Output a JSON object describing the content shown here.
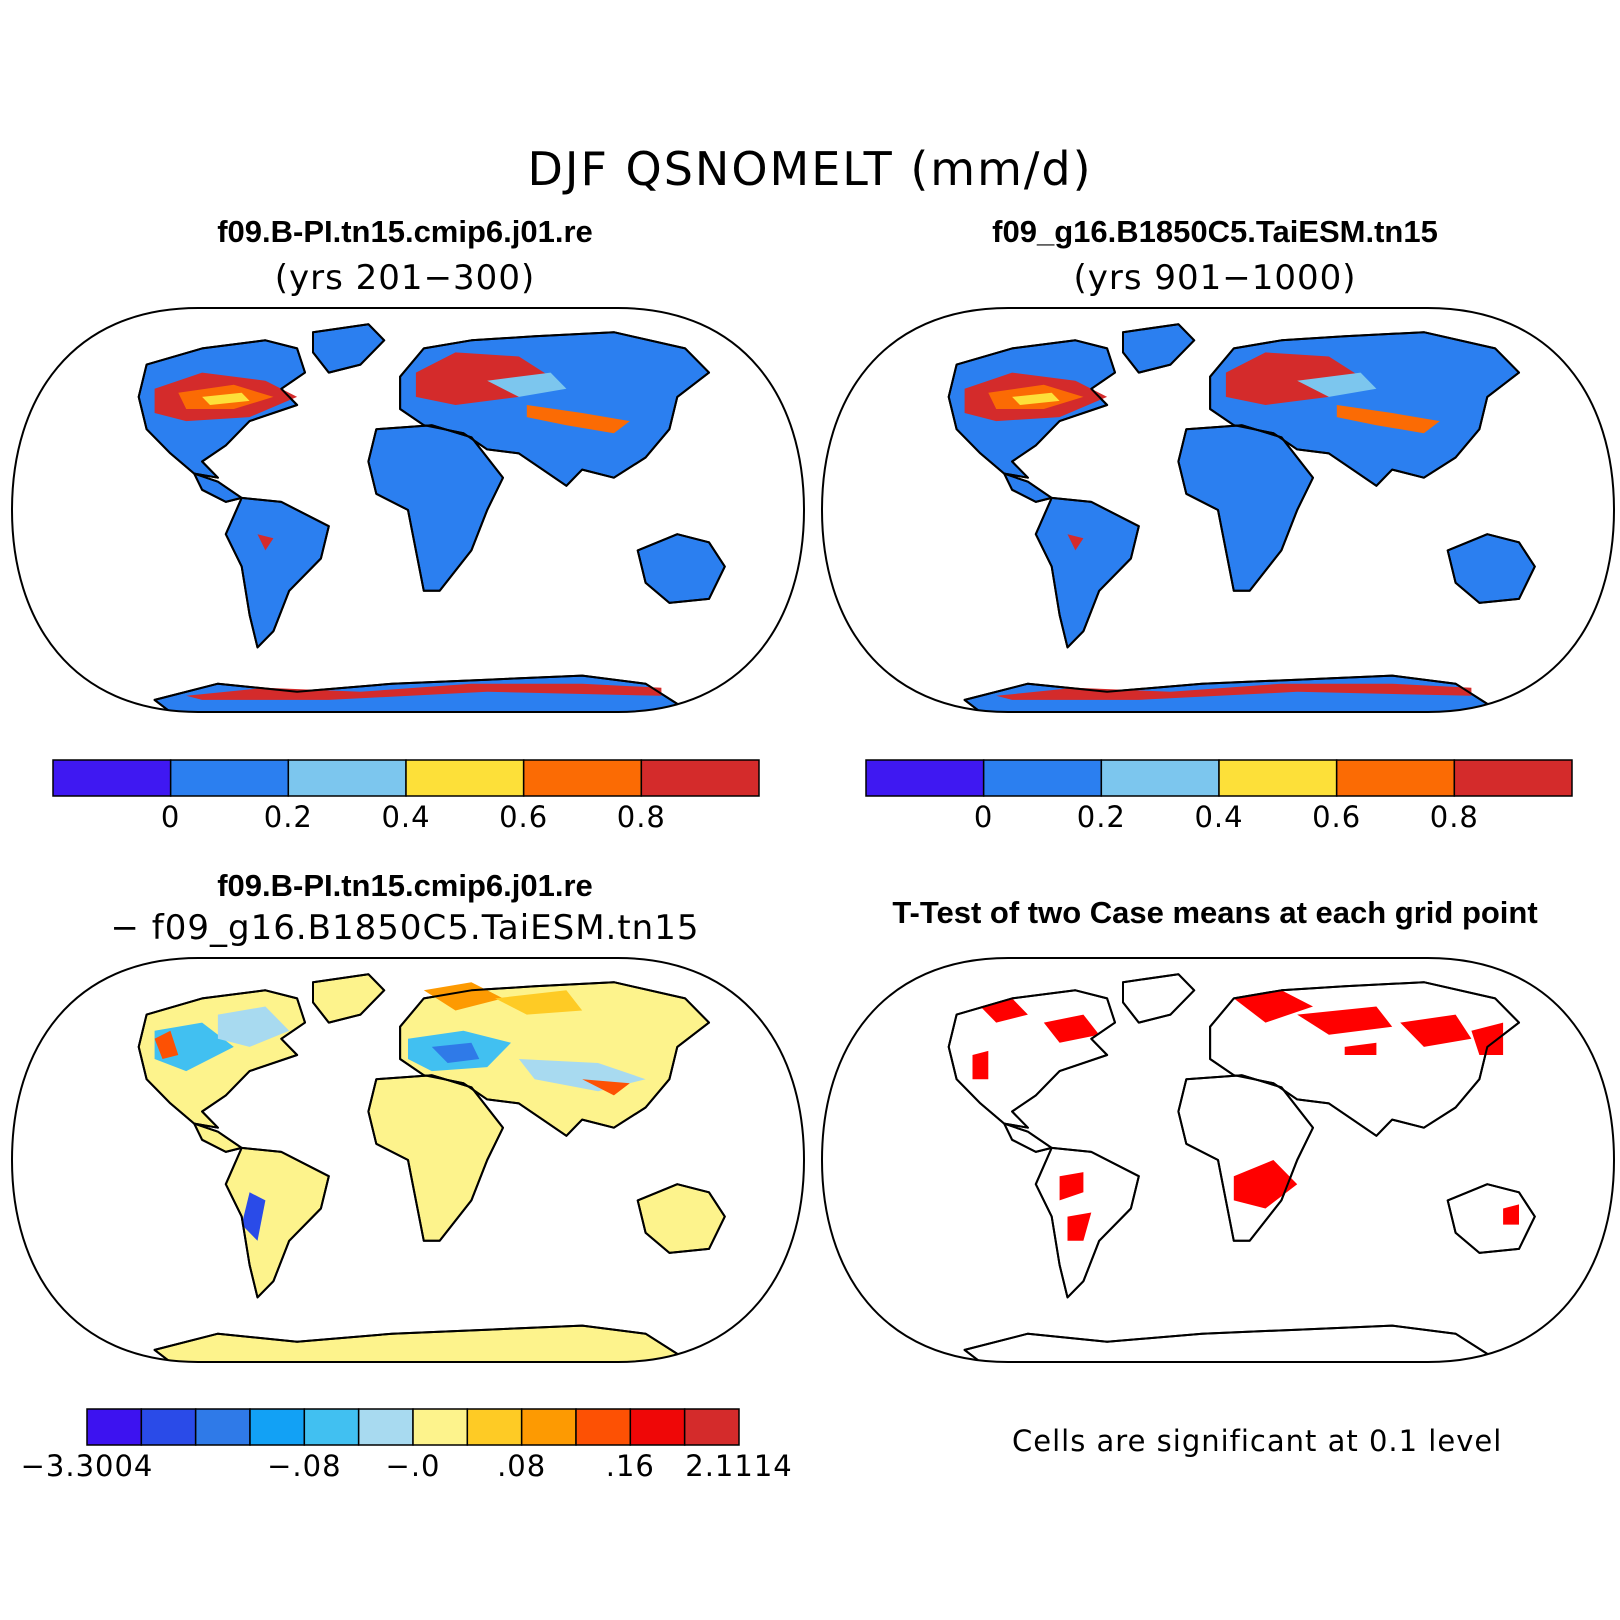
{
  "figure": {
    "title": "DJF QSNOMELT (mm/d)"
  },
  "panels": [
    {
      "id": "case1",
      "title": "f09.B-PI.tn15.cmip6.j01.re",
      "subtitle": "(yrs 201−300)",
      "colorbar": {
        "colors": [
          "#3f18f2",
          "#2b7ff0",
          "#7cc6ee",
          "#fde039",
          "#fb6b04",
          "#d42b2b"
        ],
        "tick_labels": [
          "0",
          "0.2",
          "0.4",
          "0.6",
          "0.8"
        ]
      }
    },
    {
      "id": "case2",
      "title": "f09_g16.B1850C5.TaiESM.tn15",
      "subtitle": "(yrs 901−1000)",
      "colorbar": {
        "colors": [
          "#3f18f2",
          "#2b7ff0",
          "#7cc6ee",
          "#fde039",
          "#fb6b04",
          "#d42b2b"
        ],
        "tick_labels": [
          "0",
          "0.2",
          "0.4",
          "0.6",
          "0.8"
        ]
      }
    },
    {
      "id": "difference",
      "title": "f09.B-PI.tn15.cmip6.j01.re",
      "subtitle": "− f09_g16.B1850C5.TaiESM.tn15",
      "colorbar": {
        "colors": [
          "#3d12f0",
          "#2a4be8",
          "#2f7ae8",
          "#12a1f5",
          "#41c0f1",
          "#a8daf0",
          "#fdf38c",
          "#fecb25",
          "#fd9a02",
          "#fd5104",
          "#ef0707",
          "#d42b2b"
        ],
        "tick_labels": [
          "−3.3004",
          "−.08",
          "−.0",
          ".08",
          ".16",
          "2.1114"
        ]
      }
    },
    {
      "id": "ttest",
      "title": "T-Test of two Case means at each grid point",
      "note": "Cells are significant at 0.1 level",
      "significance_color": "#ff0000"
    }
  ],
  "colors": {
    "land_base": "#2b7ff0",
    "land_diff": "#fdf38c",
    "ocean": "#ffffff",
    "coast": "#000000"
  }
}
